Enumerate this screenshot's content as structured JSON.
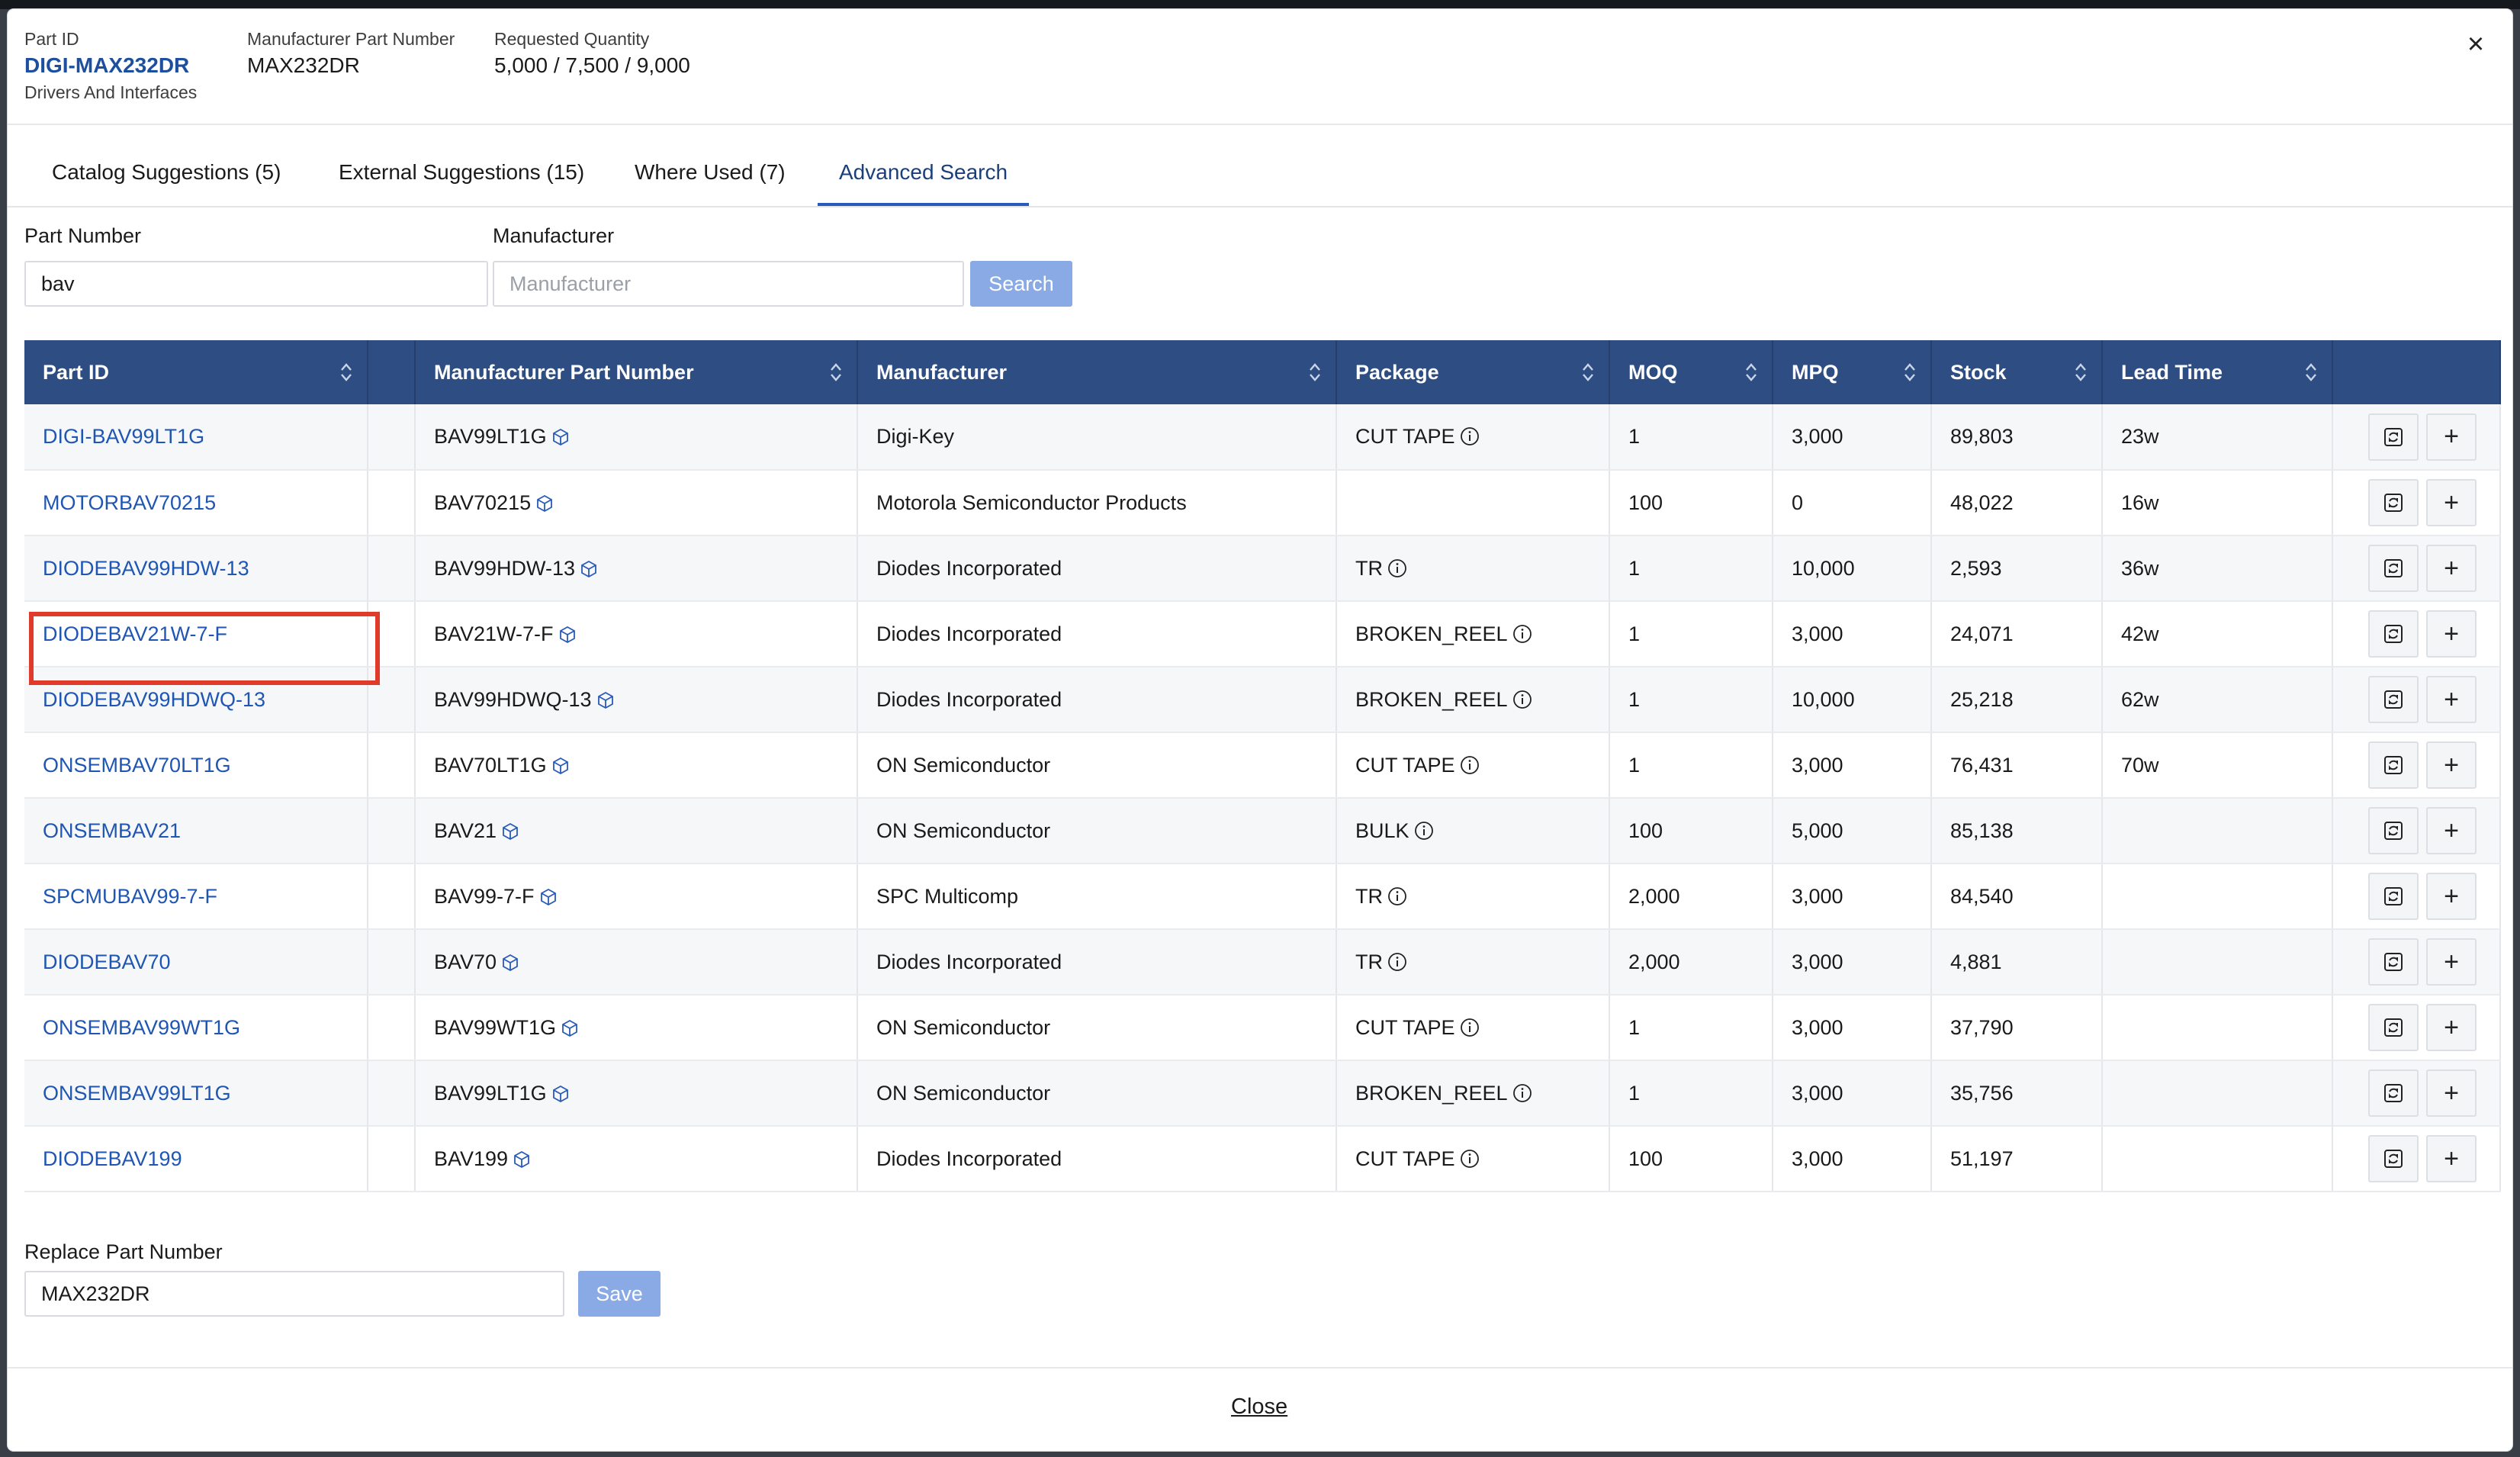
{
  "header": {
    "part_id_label": "Part ID",
    "part_id": "DIGI-MAX232DR",
    "category": "Drivers And Interfaces",
    "mpn_label": "Manufacturer Part Number",
    "mpn": "MAX232DR",
    "qty_label": "Requested Quantity",
    "qty": "5,000 / 7,500 / 9,000",
    "close_glyph": "×"
  },
  "tabs": [
    {
      "label": "Catalog Suggestions (5)",
      "active": false
    },
    {
      "label": "External Suggestions (15)",
      "active": false
    },
    {
      "label": "Where Used (7)",
      "active": false
    },
    {
      "label": "Advanced Search",
      "active": true
    }
  ],
  "search": {
    "part_number_label": "Part Number",
    "part_number_value": "bav",
    "manufacturer_label": "Manufacturer",
    "manufacturer_placeholder": "Manufacturer",
    "button": "Search"
  },
  "table": {
    "columns": [
      "Part ID",
      "",
      "Manufacturer Part Number",
      "Manufacturer",
      "Package",
      "MOQ",
      "MPQ",
      "Stock",
      "Lead Time",
      ""
    ],
    "rows": [
      {
        "part_id": "DIGI-BAV99LT1G",
        "mpn": "BAV99LT1G",
        "manufacturer": "Digi-Key",
        "package": "CUT TAPE",
        "moq": "1",
        "mpq": "3,000",
        "stock": "89,803",
        "lead": "23w"
      },
      {
        "part_id": "MOTORBAV70215",
        "mpn": "BAV70215",
        "manufacturer": "Motorola Semiconductor Products",
        "package": "",
        "moq": "100",
        "mpq": "0",
        "stock": "48,022",
        "lead": "16w"
      },
      {
        "part_id": "DIODEBAV99HDW-13",
        "mpn": "BAV99HDW-13",
        "manufacturer": "Diodes Incorporated",
        "package": "TR",
        "moq": "1",
        "mpq": "10,000",
        "stock": "2,593",
        "lead": "36w"
      },
      {
        "part_id": "DIODEBAV21W-7-F",
        "mpn": "BAV21W-7-F",
        "manufacturer": "Diodes Incorporated",
        "package": "BROKEN_REEL",
        "moq": "1",
        "mpq": "3,000",
        "stock": "24,071",
        "lead": "42w"
      },
      {
        "part_id": "DIODEBAV99HDWQ-13",
        "mpn": "BAV99HDWQ-13",
        "manufacturer": "Diodes Incorporated",
        "package": "BROKEN_REEL",
        "moq": "1",
        "mpq": "10,000",
        "stock": "25,218",
        "lead": "62w"
      },
      {
        "part_id": "ONSEMBAV70LT1G",
        "mpn": "BAV70LT1G",
        "manufacturer": "ON Semiconductor",
        "package": "CUT TAPE",
        "moq": "1",
        "mpq": "3,000",
        "stock": "76,431",
        "lead": "70w"
      },
      {
        "part_id": "ONSEMBAV21",
        "mpn": "BAV21",
        "manufacturer": "ON Semiconductor",
        "package": "BULK",
        "moq": "100",
        "mpq": "5,000",
        "stock": "85,138",
        "lead": ""
      },
      {
        "part_id": "SPCMUBAV99-7-F",
        "mpn": "BAV99-7-F",
        "manufacturer": "SPC Multicomp",
        "package": "TR",
        "moq": "2,000",
        "mpq": "3,000",
        "stock": "84,540",
        "lead": ""
      },
      {
        "part_id": "DIODEBAV70",
        "mpn": "BAV70",
        "manufacturer": "Diodes Incorporated",
        "package": "TR",
        "moq": "2,000",
        "mpq": "3,000",
        "stock": "4,881",
        "lead": ""
      },
      {
        "part_id": "ONSEMBAV99WT1G",
        "mpn": "BAV99WT1G",
        "manufacturer": "ON Semiconductor",
        "package": "CUT TAPE",
        "moq": "1",
        "mpq": "3,000",
        "stock": "37,790",
        "lead": ""
      },
      {
        "part_id": "ONSEMBAV99LT1G",
        "mpn": "BAV99LT1G",
        "manufacturer": "ON Semiconductor",
        "package": "BROKEN_REEL",
        "moq": "1",
        "mpq": "3,000",
        "stock": "35,756",
        "lead": ""
      },
      {
        "part_id": "DIODEBAV199",
        "mpn": "BAV199",
        "manufacturer": "Diodes Incorporated",
        "package": "CUT TAPE",
        "moq": "100",
        "mpq": "3,000",
        "stock": "51,197",
        "lead": ""
      }
    ],
    "row_action_icons": [
      "replace-icon",
      "plus-icon"
    ]
  },
  "replace": {
    "label": "Replace Part Number",
    "value": "MAX232DR",
    "button": "Save"
  },
  "footer": {
    "close": "Close"
  },
  "colors": {
    "header_bg": "#2e4e83",
    "link": "#1f56b3",
    "button_disabled": "#8aaae6",
    "highlight": "#e03a2a"
  }
}
